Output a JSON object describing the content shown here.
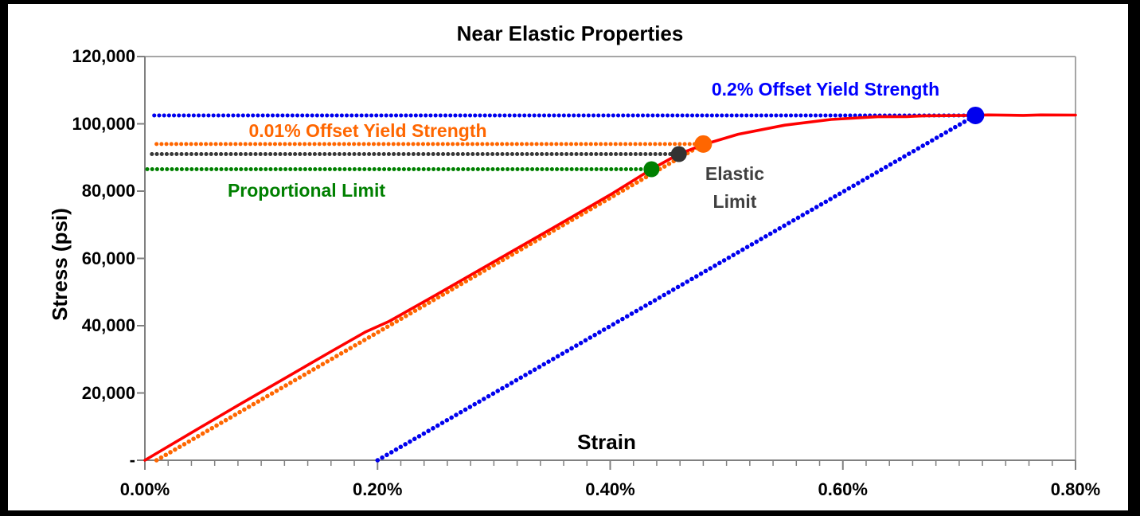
{
  "title": "Near Elastic Properties",
  "annotations": {
    "offset02_label": {
      "text": "0.2% Offset Yield Strength",
      "color": "#0000FF"
    },
    "offset001_label": {
      "text": "0.01% Offset Yield Strength",
      "color": "#FF6600"
    },
    "proportional_label": {
      "text": "Proportional Limit",
      "color": "#008000"
    },
    "elastic_label": {
      "text": "Elastic\nLimit",
      "color": "#404040"
    }
  },
  "chart_data": {
    "type": "line",
    "title": "Near Elastic Properties",
    "xlabel": "Strain",
    "ylabel": "Stress (psi)",
    "xlim": [
      0,
      0.8
    ],
    "ylim": [
      0,
      120000
    ],
    "x_ticks": [
      {
        "label": "0.00%",
        "value": 0.0
      },
      {
        "label": "0.20%",
        "value": 0.2
      },
      {
        "label": "0.40%",
        "value": 0.4
      },
      {
        "label": "0.60%",
        "value": 0.6
      },
      {
        "label": "0.80%",
        "value": 0.8
      }
    ],
    "x_minor_tick_step": 0.02,
    "y_ticks": [
      {
        "label": "-",
        "value": 0
      },
      {
        "label": "20,000",
        "value": 20000
      },
      {
        "label": "40,000",
        "value": 40000
      },
      {
        "label": "60,000",
        "value": 60000
      },
      {
        "label": "80,000",
        "value": 80000
      },
      {
        "label": "100,000",
        "value": 100000
      },
      {
        "label": "120,000",
        "value": 120000
      }
    ],
    "grid": false,
    "legend": "none",
    "elastic_modulus_psi": 20000000,
    "key_points": {
      "proportional_limit_psi": 86500,
      "elastic_limit_psi": 91000,
      "offset_001_yield_psi": 94000,
      "offset_02_yield_psi": 102500
    },
    "series": [
      {
        "name": "stress-strain-curve",
        "type": "curve",
        "color": "#FF0000",
        "width": 3.6,
        "points": [
          [
            0,
            0
          ],
          [
            0.04,
            8200
          ],
          [
            0.08,
            16300
          ],
          [
            0.12,
            24300
          ],
          [
            0.16,
            32300
          ],
          [
            0.19,
            38200
          ],
          [
            0.21,
            41300
          ],
          [
            0.25,
            49100
          ],
          [
            0.3,
            59000
          ],
          [
            0.35,
            68900
          ],
          [
            0.4,
            78900
          ],
          [
            0.4355,
            86500
          ],
          [
            0.459,
            91000
          ],
          [
            0.48,
            93800
          ],
          [
            0.51,
            96900
          ],
          [
            0.55,
            99600
          ],
          [
            0.59,
            101300
          ],
          [
            0.63,
            102100
          ],
          [
            0.655,
            102150
          ],
          [
            0.67,
            102400
          ],
          [
            0.71,
            102500
          ],
          [
            0.725,
            102650
          ],
          [
            0.755,
            102500
          ],
          [
            0.77,
            102650
          ],
          [
            0.8,
            102600
          ]
        ]
      },
      {
        "name": "proportional-limit-line",
        "type": "hline",
        "color": "#008000",
        "value": 86500,
        "from_strain": 0.002,
        "to_strain": 0.4355
      },
      {
        "name": "elastic-limit-line",
        "type": "hline",
        "color": "#383838",
        "value": 91000,
        "from_strain": 0.006,
        "to_strain": 0.459
      },
      {
        "name": "offset-001-yield-line",
        "type": "hline",
        "color": "#FF6600",
        "value": 94000,
        "from_strain": 0.01,
        "to_strain": 0.48
      },
      {
        "name": "offset-02-yield-line",
        "type": "hline",
        "color": "#0000EE",
        "value": 102500,
        "from_strain": 0.008,
        "to_strain": 0.714
      },
      {
        "name": "offset-001-construction-line",
        "type": "offset_line",
        "color": "#FF6600",
        "start": [
          0.01,
          0
        ],
        "end": [
          0.48,
          94000
        ]
      },
      {
        "name": "offset-02-construction-line",
        "type": "offset_line",
        "color": "#0000EE",
        "start": [
          0.2,
          0
        ],
        "end": [
          0.714,
          102500
        ]
      },
      {
        "name": "proportional-limit-marker",
        "type": "marker",
        "color": "#008000",
        "at": [
          0.4355,
          86500
        ],
        "r": 10
      },
      {
        "name": "elastic-limit-marker",
        "type": "marker",
        "color": "#333333",
        "at": [
          0.459,
          91000
        ],
        "r": 10
      },
      {
        "name": "offset-001-yield-marker",
        "type": "marker",
        "color": "#FF6600",
        "at": [
          0.48,
          94000
        ],
        "r": 11
      },
      {
        "name": "offset-02-yield-marker",
        "type": "marker",
        "color": "#0000EE",
        "at": [
          0.714,
          102500
        ],
        "r": 11
      }
    ]
  }
}
